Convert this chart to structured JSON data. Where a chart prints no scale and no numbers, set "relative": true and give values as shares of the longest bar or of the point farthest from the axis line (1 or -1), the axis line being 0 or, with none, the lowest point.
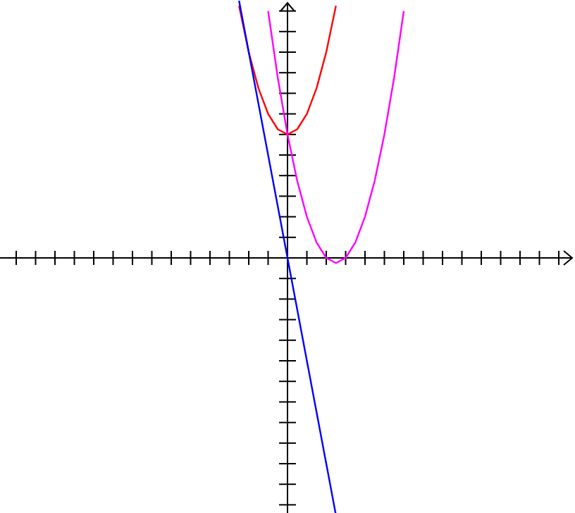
{
  "chart_data": {
    "type": "line",
    "relative": true,
    "grid": false,
    "marker": "none",
    "line_style": "solid",
    "categories": [
      null,
      null,
      null,
      null,
      null,
      null,
      null,
      null,
      null,
      null,
      null,
      null,
      null,
      null,
      null,
      null,
      null,
      null,
      null,
      null,
      null,
      null,
      null,
      null,
      null,
      null,
      null,
      null,
      null,
      null,
      null,
      null,
      null,
      null,
      null,
      null,
      null,
      null,
      null,
      null,
      null,
      null,
      null,
      null,
      null,
      null,
      null,
      null,
      null,
      null,
      null,
      null,
      null,
      null,
      null,
      null,
      null,
      null,
      null
    ],
    "series": [
      {
        "color": "#ff0000",
        "values": [
          null,
          null,
          null,
          null,
          null,
          null,
          null,
          null,
          null,
          null,
          null,
          null,
          null,
          null,
          null,
          null,
          null,
          null,
          null,
          null,
          null,
          null,
          null,
          null,
          0.98,
          0.8,
          0.66,
          0.56,
          0.5,
          0.48,
          0.5,
          0.56,
          0.66,
          0.8,
          0.98,
          null,
          null,
          null,
          null,
          null,
          null,
          null,
          null,
          null,
          null,
          null,
          null,
          null,
          null,
          null,
          null,
          null,
          null,
          null,
          null,
          null,
          null,
          null,
          null
        ]
      },
      {
        "color": "#ff00ff",
        "values": [
          null,
          null,
          null,
          null,
          null,
          null,
          null,
          null,
          null,
          null,
          null,
          null,
          null,
          null,
          null,
          null,
          null,
          null,
          null,
          null,
          null,
          null,
          null,
          null,
          null,
          null,
          null,
          0.96,
          0.7,
          0.48,
          0.3,
          0.16,
          0.06,
          0,
          -0.02,
          0,
          0.06,
          0.16,
          0.3,
          0.48,
          0.7,
          0.96,
          null,
          null,
          null,
          null,
          null,
          null,
          null,
          null,
          null,
          null,
          null,
          null,
          null,
          null,
          null,
          null,
          null
        ]
      },
      {
        "color": "#0000ff",
        "values": [
          null,
          null,
          null,
          null,
          null,
          null,
          null,
          null,
          null,
          null,
          null,
          null,
          null,
          null,
          null,
          null,
          null,
          null,
          null,
          null,
          null,
          null,
          null,
          null,
          1,
          0.8,
          0.6,
          0.4,
          0.2,
          0,
          -0.2,
          -0.4,
          -0.6,
          -0.8,
          -1,
          null,
          null,
          null,
          null,
          null,
          null,
          null,
          null,
          null,
          null,
          null,
          null,
          null,
          null,
          null,
          null,
          null,
          null,
          null,
          null,
          null,
          null,
          null,
          null
        ]
      }
    ]
  }
}
